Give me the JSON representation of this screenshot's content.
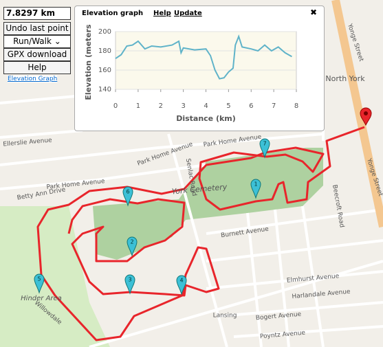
{
  "controls": {
    "distance": "7.8297 km",
    "buttons": [
      "Undo last point",
      "GPX download",
      "Help"
    ],
    "mode": "Run/Walk",
    "link": "Elevation Graph"
  },
  "elevation_panel": {
    "title": "Elevation graph",
    "links": [
      "Help",
      "Update"
    ],
    "close": "✖",
    "chart_data": {
      "type": "line",
      "xlabel": "Distance (km)",
      "ylabel": "Elevation (meters)",
      "color": "#5fb3c9",
      "background": "#fbf9ec",
      "grid": true,
      "x": [
        0,
        0.25,
        0.5,
        0.75,
        1.0,
        1.3,
        1.6,
        2.0,
        2.5,
        2.8,
        2.9,
        3.0,
        3.5,
        4.0,
        4.2,
        4.4,
        4.6,
        4.8,
        5.0,
        5.2,
        5.3,
        5.45,
        5.6,
        6.0,
        6.3,
        6.6,
        6.9,
        7.2,
        7.5,
        7.8
      ],
      "values": [
        172,
        176,
        185,
        186,
        190,
        182,
        185,
        184,
        186,
        190,
        178,
        183,
        181,
        182,
        175,
        160,
        151,
        152,
        158,
        162,
        186,
        195,
        184,
        182,
        180,
        186,
        180,
        184,
        178,
        174
      ],
      "xlim": [
        0,
        8
      ],
      "ylim": [
        140,
        200
      ],
      "xticks": [
        0,
        1,
        2,
        3,
        4,
        5,
        6,
        7,
        8
      ],
      "yticks": [
        140,
        160,
        180,
        200
      ]
    }
  },
  "map": {
    "labels": [
      "York Cemetery",
      "North York",
      "Yonge Street",
      "Yonge Street",
      "Senlac Road",
      "Park Home Avenue",
      "Park Home Avenue",
      "Park Home Avenue",
      "Betty Ann Drive",
      "Burnett Avenue",
      "Elmhurst Avenue",
      "Harlandale Avenue",
      "Lansing",
      "Bogert Avenue",
      "Poyntz Avenue",
      "Beecroft Road",
      "Hinder Area",
      "Ellerslie Avenue",
      "Willowdale"
    ],
    "markers": [
      "1",
      "2",
      "3",
      "4",
      "5",
      "6",
      "7"
    ]
  }
}
